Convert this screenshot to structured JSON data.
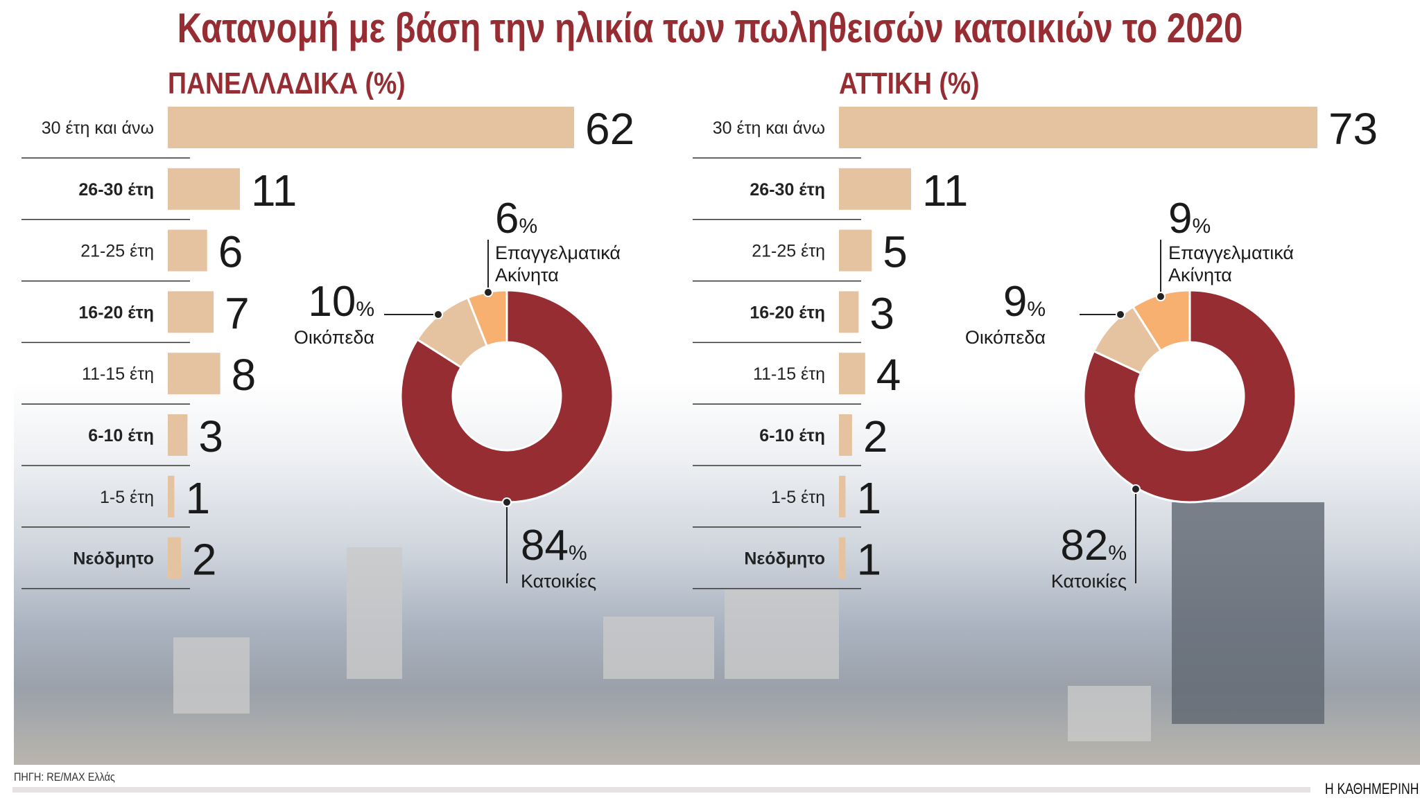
{
  "title": "Κατανομή με βάση την ηλικία των πωληθεισών κατοικιών το 2020",
  "source": "ΠΗΓΗ: RE/MAX Ελλάς",
  "brand": "Η ΚΑΘΗΜΕΡΙΝΗ",
  "colors": {
    "title": "#962d33",
    "bar": "#e6c3a0",
    "housing": "#962d33",
    "land": "#e6c3a0",
    "commercial": "#f8b070"
  },
  "chart_data": [
    {
      "type": "bar",
      "orientation": "horizontal",
      "title": "ΠΑΝΕΛΛΑΔΙΚΑ (%)",
      "categories": [
        "30 έτη και άνω",
        "26-30 έτη",
        "21-25 έτη",
        "16-20 έτη",
        "11-15 έτη",
        "6-10 έτη",
        "1-5 έτη",
        "Νεόδμητο"
      ],
      "values": [
        62,
        11,
        6,
        7,
        8,
        3,
        1,
        2
      ]
    },
    {
      "type": "pie",
      "donut": true,
      "slices": [
        {
          "label": "Κατοικίες",
          "value": 84,
          "display": "84",
          "unit": "%"
        },
        {
          "label": "Οικόπεδα",
          "value": 10,
          "display": "10",
          "unit": "%"
        },
        {
          "label": "Επαγγελματικά Ακίνητα",
          "value": 6,
          "display": "6",
          "unit": "%"
        }
      ]
    },
    {
      "type": "bar",
      "orientation": "horizontal",
      "title": "ΑΤΤΙΚΗ (%)",
      "categories": [
        "30 έτη και άνω",
        "26-30 έτη",
        "21-25 έτη",
        "16-20 έτη",
        "11-15 έτη",
        "6-10 έτη",
        "1-5 έτη",
        "Νεόδμητο"
      ],
      "values": [
        73,
        11,
        5,
        3,
        4,
        2,
        1,
        1
      ]
    },
    {
      "type": "pie",
      "donut": true,
      "slices": [
        {
          "label": "Κατοικίες",
          "value": 82,
          "display": "82",
          "unit": "%"
        },
        {
          "label": "Οικόπεδα",
          "value": 9,
          "display": "9",
          "unit": "%"
        },
        {
          "label": "Επαγγελματικά Ακίνητα",
          "value": 9,
          "display": "9",
          "unit": "%"
        }
      ]
    }
  ]
}
